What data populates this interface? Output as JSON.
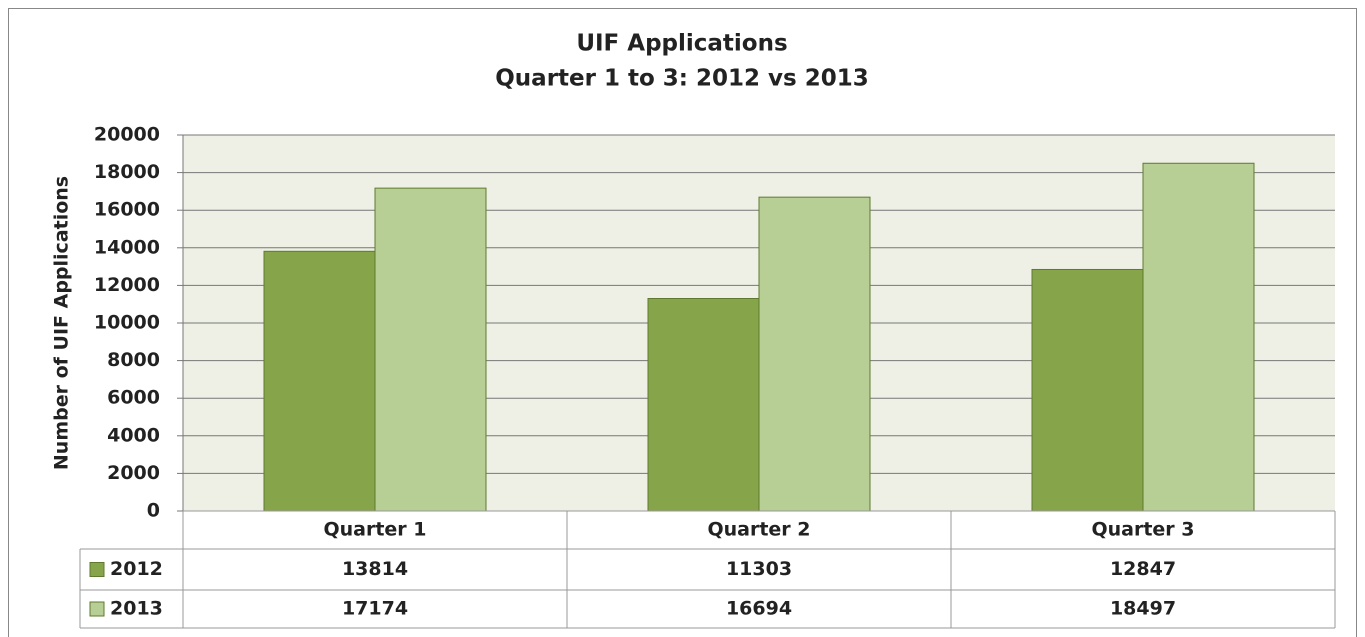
{
  "chart_data": {
    "type": "bar",
    "title": [
      "UIF Applications",
      "Quarter 1 to 3: 2012 vs 2013"
    ],
    "y_label": "Number of UIF Applications",
    "categories": [
      "Quarter 1",
      "Quarter 2",
      "Quarter 3"
    ],
    "series": [
      {
        "name": "2012",
        "color": "#86a44a",
        "values": [
          13814,
          11303,
          12847
        ]
      },
      {
        "name": "2013",
        "color": "#b7cf95",
        "values": [
          17174,
          16694,
          18497
        ]
      }
    ],
    "ylim": [
      0,
      20000
    ],
    "yticks": [
      0,
      2000,
      4000,
      6000,
      8000,
      10000,
      12000,
      14000,
      16000,
      18000,
      20000
    ],
    "grid": true,
    "data_table": true
  }
}
